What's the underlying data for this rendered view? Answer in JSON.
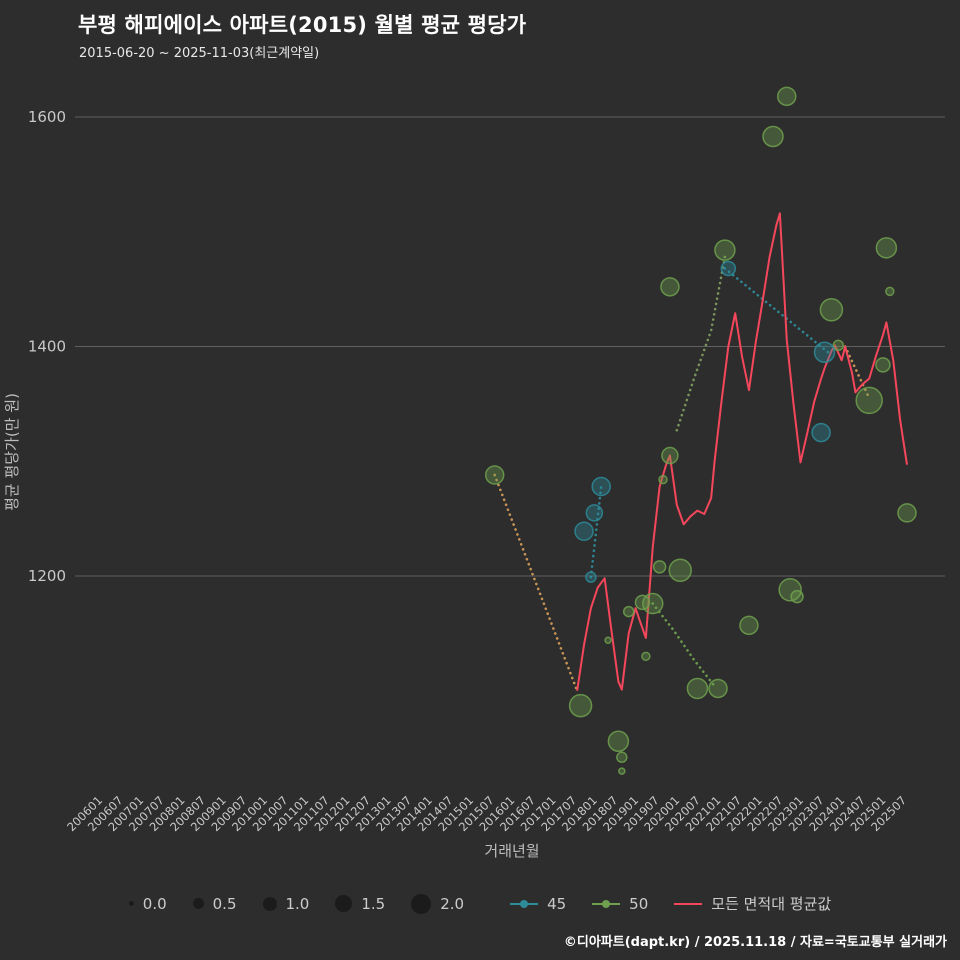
{
  "footer": "©디아파트(dapt.kr) / 2025.11.18 / 자료=국토교통부 실거래가",
  "colors": {
    "background": "#2d2d2d",
    "grid": "#606060",
    "tick_text": "#c9c9c9",
    "axis_text": "#bdbdbd",
    "title": "#ffffff",
    "series_45": "#2e8b9a",
    "series_50": "#6fa04e",
    "avg_line": "#f5475b",
    "trend_orange": "#d19a57"
  },
  "chart_data": {
    "type": "scatter",
    "title": "부평 해피에이스 아파트(2015) 월별 평균 평당가",
    "subtitle": "2015-06-20 ~ 2025-11-03(최근계약일)",
    "xlabel": "거래년월",
    "ylabel": "평균 평당가(만 원)",
    "yticks": [
      1200,
      1400,
      1600
    ],
    "ylim": [
      1010,
      1660
    ],
    "grid": "horizontal-only",
    "legend_position": "bottom",
    "xticks": [
      "200601",
      "200607",
      "200701",
      "200707",
      "200801",
      "200807",
      "200901",
      "200907",
      "201001",
      "201007",
      "201101",
      "201107",
      "201201",
      "201207",
      "201301",
      "201307",
      "201401",
      "201407",
      "201501",
      "201507",
      "201601",
      "201607",
      "201701",
      "201707",
      "201801",
      "201807",
      "201901",
      "201907",
      "202001",
      "202007",
      "202101",
      "202107",
      "202201",
      "202207",
      "202301",
      "202307",
      "202401",
      "202407",
      "202501",
      "202507"
    ],
    "bubbles": {
      "45": [
        [
          201709,
          1239,
          9
        ],
        [
          201711,
          1199,
          5
        ],
        [
          201712,
          1255,
          8
        ],
        [
          201802,
          1278,
          9
        ],
        [
          202103,
          1468,
          7
        ],
        [
          202306,
          1325,
          9
        ],
        [
          202307,
          1395,
          10
        ]
      ],
      "50": [
        [
          201507,
          1288,
          9
        ],
        [
          201708,
          1087,
          11
        ],
        [
          201804,
          1144,
          3
        ],
        [
          201807,
          1056,
          10
        ],
        [
          201808,
          1042,
          5
        ],
        [
          201808,
          1030,
          3
        ],
        [
          201810,
          1169,
          5
        ],
        [
          201902,
          1177,
          7
        ],
        [
          201903,
          1130,
          4
        ],
        [
          201905,
          1176,
          10
        ],
        [
          201907,
          1208,
          6
        ],
        [
          201908,
          1284,
          4
        ],
        [
          201910,
          1305,
          8
        ],
        [
          201910,
          1452,
          9
        ],
        [
          202001,
          1205,
          11
        ],
        [
          202006,
          1102,
          10
        ],
        [
          202012,
          1102,
          9
        ],
        [
          202102,
          1484,
          10
        ],
        [
          202109,
          1157,
          9
        ],
        [
          202204,
          1583,
          10
        ],
        [
          202208,
          1618,
          9
        ],
        [
          202209,
          1188,
          11
        ],
        [
          202211,
          1182,
          6
        ],
        [
          202309,
          1432,
          11
        ],
        [
          202311,
          1401,
          5
        ],
        [
          202408,
          1353,
          13
        ],
        [
          202412,
          1384,
          7
        ],
        [
          202501,
          1486,
          10
        ],
        [
          202502,
          1448,
          4
        ],
        [
          202507,
          1255,
          9
        ]
      ]
    },
    "avg_line": {
      "name": "모든 면적대 평균값",
      "points": [
        [
          201707,
          1100
        ],
        [
          201709,
          1140
        ],
        [
          201711,
          1172
        ],
        [
          201801,
          1190
        ],
        [
          201803,
          1198
        ],
        [
          201805,
          1152
        ],
        [
          201807,
          1108
        ],
        [
          201808,
          1101
        ],
        [
          201810,
          1150
        ],
        [
          201812,
          1172
        ],
        [
          201901,
          1163
        ],
        [
          201903,
          1146
        ],
        [
          201905,
          1225
        ],
        [
          201907,
          1278
        ],
        [
          201909,
          1298
        ],
        [
          201910,
          1305
        ],
        [
          201912,
          1262
        ],
        [
          202002,
          1245
        ],
        [
          202004,
          1252
        ],
        [
          202006,
          1257
        ],
        [
          202008,
          1254
        ],
        [
          202010,
          1268
        ],
        [
          202011,
          1300
        ],
        [
          202101,
          1352
        ],
        [
          202103,
          1400
        ],
        [
          202105,
          1429
        ],
        [
          202107,
          1391
        ],
        [
          202109,
          1362
        ],
        [
          202111,
          1404
        ],
        [
          202201,
          1440
        ],
        [
          202203,
          1478
        ],
        [
          202205,
          1506
        ],
        [
          202206,
          1516
        ],
        [
          202208,
          1406
        ],
        [
          202210,
          1349
        ],
        [
          202212,
          1299
        ],
        [
          202302,
          1325
        ],
        [
          202304,
          1352
        ],
        [
          202306,
          1372
        ],
        [
          202307,
          1381
        ],
        [
          202309,
          1396
        ],
        [
          202310,
          1401
        ],
        [
          202312,
          1388
        ],
        [
          202401,
          1400
        ],
        [
          202403,
          1377
        ],
        [
          202404,
          1360
        ],
        [
          202406,
          1367
        ],
        [
          202408,
          1372
        ],
        [
          202410,
          1392
        ],
        [
          202412,
          1410
        ],
        [
          202501,
          1421
        ],
        [
          202503,
          1388
        ],
        [
          202505,
          1336
        ],
        [
          202507,
          1297
        ]
      ]
    },
    "trends": [
      {
        "color": "#d19a57",
        "points": [
          [
            201507,
            1288
          ],
          [
            201707,
            1100
          ]
        ]
      },
      {
        "color": "#2e8b9a",
        "points": [
          [
            202102,
            1468
          ],
          [
            202308,
            1395
          ]
        ]
      },
      {
        "color": "#6fa04e",
        "points": [
          [
            201905,
            1176
          ],
          [
            201911,
            1153
          ],
          [
            202005,
            1127
          ],
          [
            202011,
            1104
          ]
        ]
      },
      {
        "color": "#d19a57",
        "points": [
          [
            202401,
            1400
          ],
          [
            202408,
            1355
          ]
        ]
      },
      {
        "color": "#2e8b9a",
        "points": [
          [
            201711,
            1199
          ],
          [
            201802,
            1278
          ]
        ]
      },
      {
        "color": "#7d9a5f",
        "points": [
          [
            201912,
            1327
          ],
          [
            202005,
            1372
          ],
          [
            202010,
            1414
          ],
          [
            202102,
            1478
          ]
        ]
      }
    ],
    "legend": {
      "sizes": [
        "0.0",
        "0.5",
        "1.0",
        "1.5",
        "2.0"
      ],
      "series": [
        {
          "label": "45",
          "color": "#2e8b9a",
          "type": "scatter"
        },
        {
          "label": "50",
          "color": "#6fa04e",
          "type": "scatter"
        },
        {
          "label": "모든 면적대 평균값",
          "color": "#f5475b",
          "type": "line"
        }
      ]
    }
  }
}
